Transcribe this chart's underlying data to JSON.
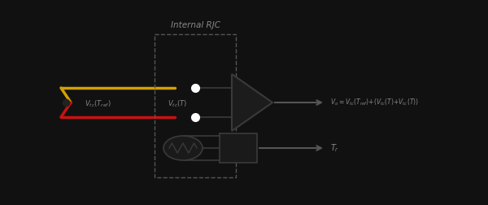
{
  "bg_color": "#111111",
  "line_color": "#3a3a3a",
  "dashed_color": "#555555",
  "yellow_wire": "#d4a000",
  "red_wire": "#cc1111",
  "text_color": "#888888",
  "title_text": "Internal RJC",
  "label_left": "V_{tc}(T_{ref})",
  "label_mid": "V_{tc}(T)",
  "label_out1": "V_o=V_{tc}(T_{ref})+(V_{tc}(T)+V_{tc}(T))",
  "label_out2": "T_r",
  "title_fontsize": 7.5,
  "label_fontsize": 6
}
